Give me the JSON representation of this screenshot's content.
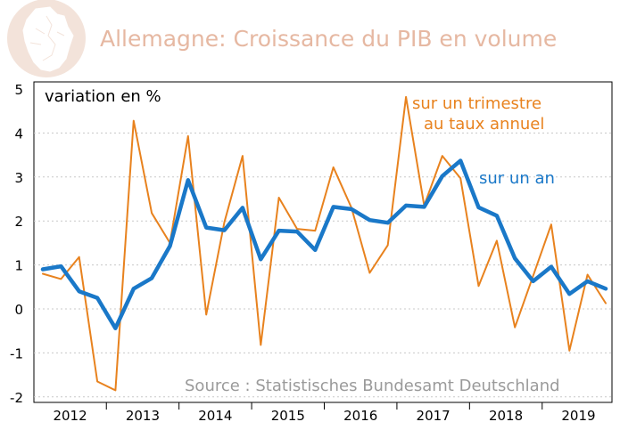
{
  "chart_data": {
    "type": "line",
    "title": "Allemagne: Croissance du PIB en volume",
    "ylabel": "variation en %",
    "source": "Source : Statistisches Bundesamt Deutschland",
    "ylim": [
      -2,
      5
    ],
    "yticks": [
      "5",
      "4",
      "3",
      "2",
      "1",
      "0",
      "-1",
      "-2"
    ],
    "ytick_values": [
      5,
      4,
      3,
      2,
      1,
      0,
      -1,
      -2
    ],
    "year_labels": [
      "2012",
      "2013",
      "2014",
      "2015",
      "2016",
      "2017",
      "2018",
      "2019"
    ],
    "quarters": [
      "2012T1",
      "2012T2",
      "2012T3",
      "2012T4",
      "2013T1",
      "2013T2",
      "2013T3",
      "2013T4",
      "2014T1",
      "2014T2",
      "2014T3",
      "2014T4",
      "2015T1",
      "2015T2",
      "2015T3",
      "2015T4",
      "2016T1",
      "2016T2",
      "2016T3",
      "2016T4",
      "2017T1",
      "2017T2",
      "2017T3",
      "2017T4",
      "2018T1",
      "2018T2",
      "2018T3",
      "2018T4",
      "2019T1",
      "2019T2",
      "2019T3",
      "2019T4"
    ],
    "series": [
      {
        "name": "sur un trimestre au taux annuel",
        "label_lines": [
          "sur un trimestre",
          "au taux annuel"
        ],
        "color": "#e8821e",
        "values": [
          0.8,
          0.68,
          1.18,
          -1.65,
          -1.85,
          4.28,
          2.18,
          1.5,
          3.93,
          -0.13,
          1.97,
          3.48,
          -0.82,
          2.53,
          1.82,
          1.78,
          3.22,
          2.3,
          0.82,
          1.45,
          4.82,
          2.35,
          3.48,
          2.97,
          0.52,
          1.55,
          -0.42,
          0.75,
          1.92,
          -0.95,
          0.78,
          0.13
        ]
      },
      {
        "name": "sur un an",
        "label_lines": [
          "sur un an"
        ],
        "color": "#1a78c8",
        "values": [
          0.9,
          0.97,
          0.4,
          0.25,
          -0.44,
          0.46,
          0.7,
          1.43,
          2.93,
          1.85,
          1.79,
          2.3,
          1.13,
          1.78,
          1.76,
          1.34,
          2.32,
          2.27,
          2.02,
          1.96,
          2.35,
          2.32,
          3.02,
          3.37,
          2.31,
          2.12,
          1.15,
          0.63,
          0.96,
          0.34,
          0.63,
          0.46
        ]
      }
    ]
  }
}
